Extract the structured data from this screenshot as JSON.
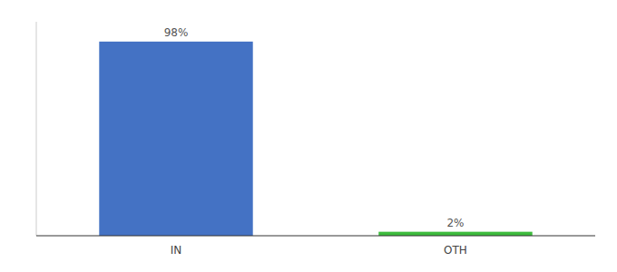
{
  "chart_data": {
    "type": "bar",
    "categories": [
      "IN",
      "OTH"
    ],
    "values": [
      98,
      2
    ],
    "colors": [
      "#4472c4",
      "#3dbb3d"
    ],
    "data_labels": true,
    "value_labels": [
      "98%",
      "2%"
    ],
    "ylim": [
      0,
      108
    ],
    "tick_labels": "x"
  }
}
